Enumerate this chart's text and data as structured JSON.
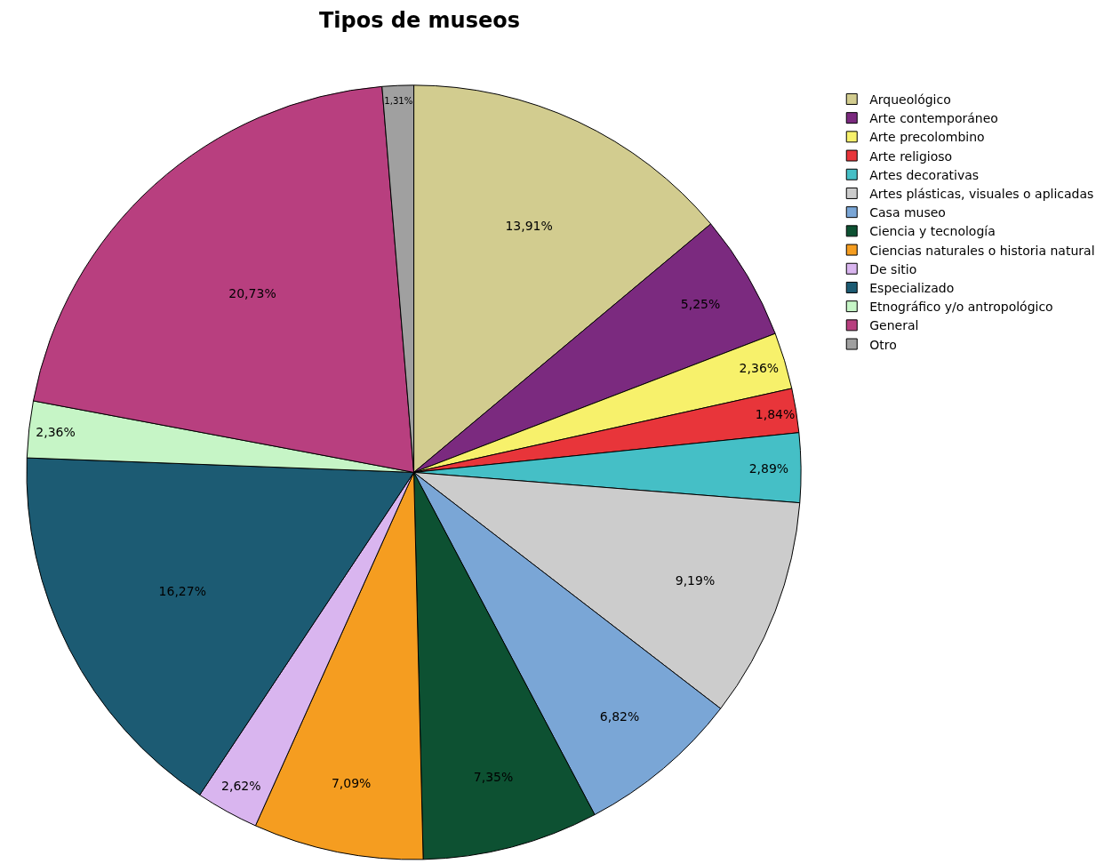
{
  "chart_data": {
    "type": "pie",
    "title": "Tipos de museos",
    "categories": [
      "Arqueológico",
      "Arte contemporáneo",
      "Arte precolombino",
      "Arte religioso",
      "Artes decorativas",
      "Artes plásticas, visuales o aplicadas",
      "Casa museo",
      "Ciencia y tecnología",
      "Ciencias naturales o historia natural",
      "De sitio",
      "Especializado",
      "Etnográfico y/o antropológico",
      "General",
      "Otro"
    ],
    "values": [
      13.91,
      5.25,
      2.36,
      1.84,
      2.89,
      9.19,
      6.82,
      7.35,
      7.09,
      2.62,
      16.27,
      2.36,
      20.73,
      1.31
    ],
    "value_labels": [
      "13,91%",
      "5,25%",
      "2,36%",
      "1,84%",
      "2,89%",
      "9,19%",
      "6,82%",
      "7,35%",
      "7,09%",
      "2,62%",
      "16,27%",
      "2,36%",
      "20,73%",
      "1,31%"
    ],
    "colors": [
      "#d2cc8f",
      "#7b2a7f",
      "#f7f16b",
      "#e8353a",
      "#45bfc6",
      "#cccccc",
      "#7aa6d6",
      "#0d5132",
      "#f59d20",
      "#d9b5ef",
      "#1c5b73",
      "#c6f5c6",
      "#b83f7f",
      "#a0a0a0"
    ],
    "legend": "top right"
  }
}
